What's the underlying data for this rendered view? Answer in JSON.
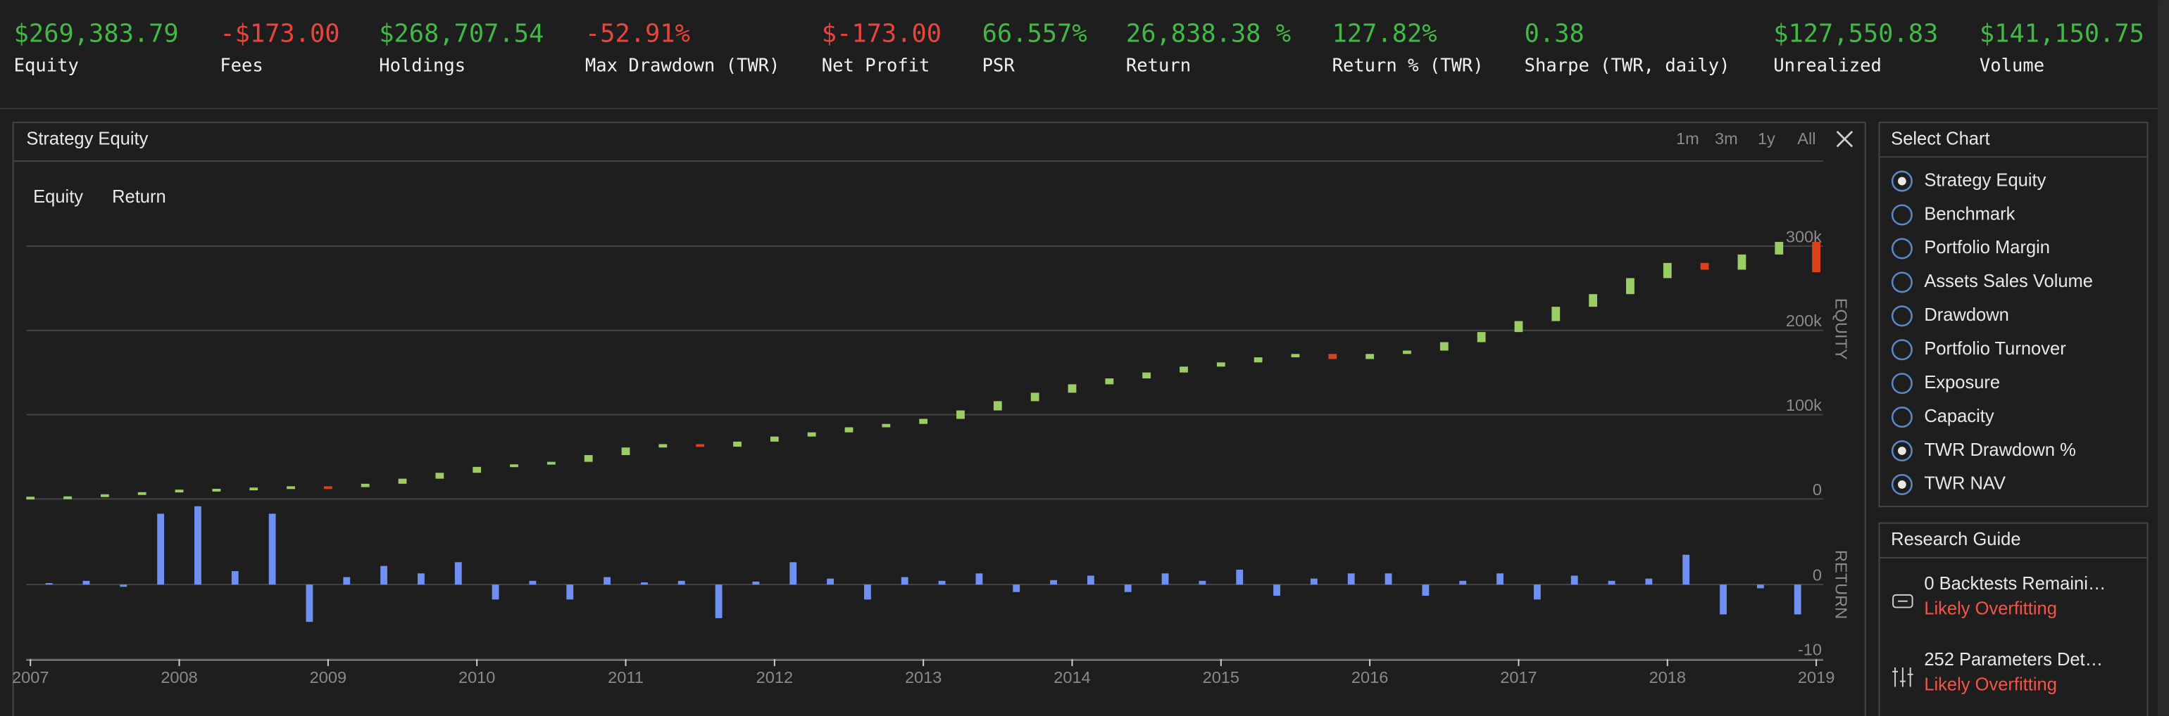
{
  "stats": [
    {
      "value": "$269,383.79",
      "label": "Equity",
      "color": "#43b846"
    },
    {
      "value": "-$173.00",
      "label": "Fees",
      "color": "#e8453c"
    },
    {
      "value": "$268,707.54",
      "label": "Holdings",
      "color": "#43b846"
    },
    {
      "value": "-52.91%",
      "label": "Max Drawdown (TWR)",
      "color": "#e8453c"
    },
    {
      "value": "$-173.00",
      "label": "Net Profit",
      "color": "#e8453c"
    },
    {
      "value": "66.557%",
      "label": "PSR",
      "color": "#43b846"
    },
    {
      "value": "26,838.38 %",
      "label": "Return",
      "color": "#43b846"
    },
    {
      "value": "127.82%",
      "label": "Return % (TWR)",
      "color": "#43b846"
    },
    {
      "value": "0.38",
      "label": "Sharpe (TWR, daily)",
      "color": "#43b846"
    },
    {
      "value": "$127,550.83",
      "label": "Unrealized",
      "color": "#43b846"
    },
    {
      "value": "$141,150.75",
      "label": "Volume",
      "color": "#43b846"
    }
  ],
  "panel": {
    "title": "Strategy Equity",
    "timeframes": [
      "1m",
      "3m",
      "1y",
      "All"
    ]
  },
  "chart_data": [
    {
      "type": "candlestick",
      "y_label": "EQUITY",
      "x": [
        2007,
        2007.25,
        2007.5,
        2007.75,
        2008,
        2008.25,
        2008.5,
        2008.75,
        2009,
        2009.25,
        2009.5,
        2009.75,
        2010,
        2010.25,
        2010.5,
        2010.75,
        2011,
        2011.25,
        2011.5,
        2011.75,
        2012,
        2012.25,
        2012.5,
        2012.75,
        2013,
        2013.25,
        2013.5,
        2013.75,
        2014,
        2014.25,
        2014.5,
        2014.75,
        2015,
        2015.25,
        2015.5,
        2015.75,
        2016,
        2016.25,
        2016.5,
        2016.75,
        2017,
        2017.25,
        2017.5,
        2017.75,
        2018,
        2018.25,
        2018.5,
        2018.75,
        2019
      ],
      "xlim": [
        2007,
        2019
      ],
      "series": [
        {
          "name": "Equity",
          "up_color": "#9ccc65",
          "down_color": "#d8431c",
          "values": [
            1000,
            3000,
            5500,
            8000,
            11000,
            12000,
            13500,
            15000,
            14000,
            18000,
            24000,
            31000,
            38000,
            41000,
            44000,
            52000,
            61000,
            65000,
            62000,
            68000,
            74000,
            79000,
            85000,
            89000,
            95000,
            105000,
            116000,
            126000,
            136000,
            143000,
            150000,
            157000,
            162000,
            168000,
            172000,
            166000,
            172000,
            176000,
            186000,
            198000,
            211000,
            228000,
            243000,
            262000,
            280000,
            272000,
            290000,
            305000,
            269000
          ]
        }
      ],
      "ylim": [
        0,
        400000
      ],
      "yticks": [
        0,
        {
          "value": 100000,
          "label": "100k"
        },
        {
          "value": 200000,
          "label": "200k"
        },
        {
          "value": 300000,
          "label": "300k"
        }
      ],
      "grid": true
    },
    {
      "type": "bar",
      "y_label": "RETURN",
      "x": [
        2007.125,
        2007.375,
        2007.625,
        2007.875,
        2008.125,
        2008.375,
        2008.625,
        2008.875,
        2009.125,
        2009.375,
        2009.625,
        2009.875,
        2010.125,
        2010.375,
        2010.625,
        2010.875,
        2011.125,
        2011.375,
        2011.625,
        2011.875,
        2012.125,
        2012.375,
        2012.625,
        2012.875,
        2013.125,
        2013.375,
        2013.625,
        2013.875,
        2014.125,
        2014.375,
        2014.625,
        2014.875,
        2015.125,
        2015.375,
        2015.625,
        2015.875,
        2016.125,
        2016.375,
        2016.625,
        2016.875,
        2017.125,
        2017.375,
        2017.625,
        2017.875,
        2018.125,
        2018.375,
        2018.625,
        2018.875
      ],
      "xlim": [
        2007,
        2019
      ],
      "xticks": [
        2007,
        2008,
        2009,
        2010,
        2011,
        2012,
        2013,
        2014,
        2015,
        2016,
        2017,
        2018,
        2019
      ],
      "series": [
        {
          "name": "Return",
          "color": "#6f8ff2",
          "values": [
            0.2,
            0.5,
            -0.3,
            9.5,
            10.5,
            1.8,
            9.5,
            -5,
            1,
            2.5,
            1.5,
            3,
            -2,
            0.5,
            -2,
            1,
            0.3,
            0.5,
            -4.5,
            0.4,
            3,
            0.8,
            -2,
            1,
            0.5,
            1.5,
            -1,
            0.6,
            1.2,
            -1,
            1.5,
            0.5,
            2,
            -1.5,
            0.8,
            1.5,
            1.5,
            -1.5,
            0.5,
            1.5,
            -2,
            1.2,
            0.5,
            0.8,
            4,
            -4,
            -0.5,
            -4
          ]
        }
      ],
      "ylim": [
        -10,
        11
      ],
      "yticks": [
        0,
        -10
      ],
      "grid": true
    }
  ],
  "select_chart": {
    "title": "Select Chart",
    "options": [
      {
        "label": "Strategy Equity",
        "selected": true
      },
      {
        "label": "Benchmark",
        "selected": false
      },
      {
        "label": "Portfolio Margin",
        "selected": false
      },
      {
        "label": "Assets Sales Volume",
        "selected": false
      },
      {
        "label": "Drawdown",
        "selected": false
      },
      {
        "label": "Portfolio Turnover",
        "selected": false
      },
      {
        "label": "Exposure",
        "selected": false
      },
      {
        "label": "Capacity",
        "selected": false
      },
      {
        "label": "TWR Drawdown %",
        "selected": true
      },
      {
        "label": "TWR NAV",
        "selected": true
      }
    ]
  },
  "research_guide": {
    "title": "Research Guide",
    "items": [
      {
        "title": "0 Backtests Remaini…",
        "status": "Likely Overfitting"
      },
      {
        "title": "252 Parameters Det…",
        "status": "Likely Overfitting"
      }
    ]
  }
}
